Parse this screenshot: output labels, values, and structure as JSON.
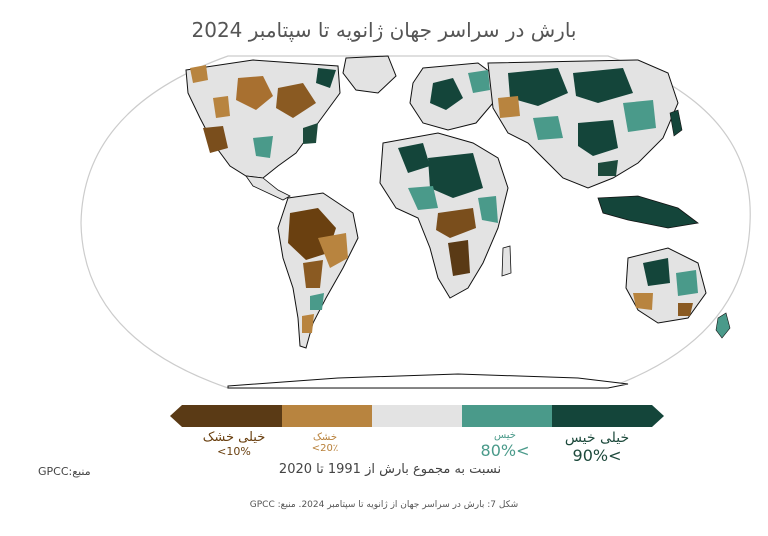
{
  "title": "بارش در سراسر جهان ژانویه تا سپتامبر 2024",
  "legend": {
    "very_dry": {
      "name": "خیلی خشک",
      "pct": "10%>",
      "color": "#5a3a15"
    },
    "dry": {
      "name": "خشک",
      "pct": "20٪>",
      "color": "#b8843f"
    },
    "normal": {
      "color": "#e3e3e3"
    },
    "wet": {
      "name": "خیس",
      "pct": ">80%",
      "color": "#4a9a8a"
    },
    "very_wet": {
      "name": "خیلی خیس",
      "pct": ">90%",
      "color": "#14453a"
    }
  },
  "axis_label": "نسبت به مجموع بارش از 1991 تا 2020",
  "source": "منبع:GPCC",
  "caption": "شکل 7: بارش در سراسر جهان از ژانویه تا سپتامبر 2024. منبع: GPCC"
}
